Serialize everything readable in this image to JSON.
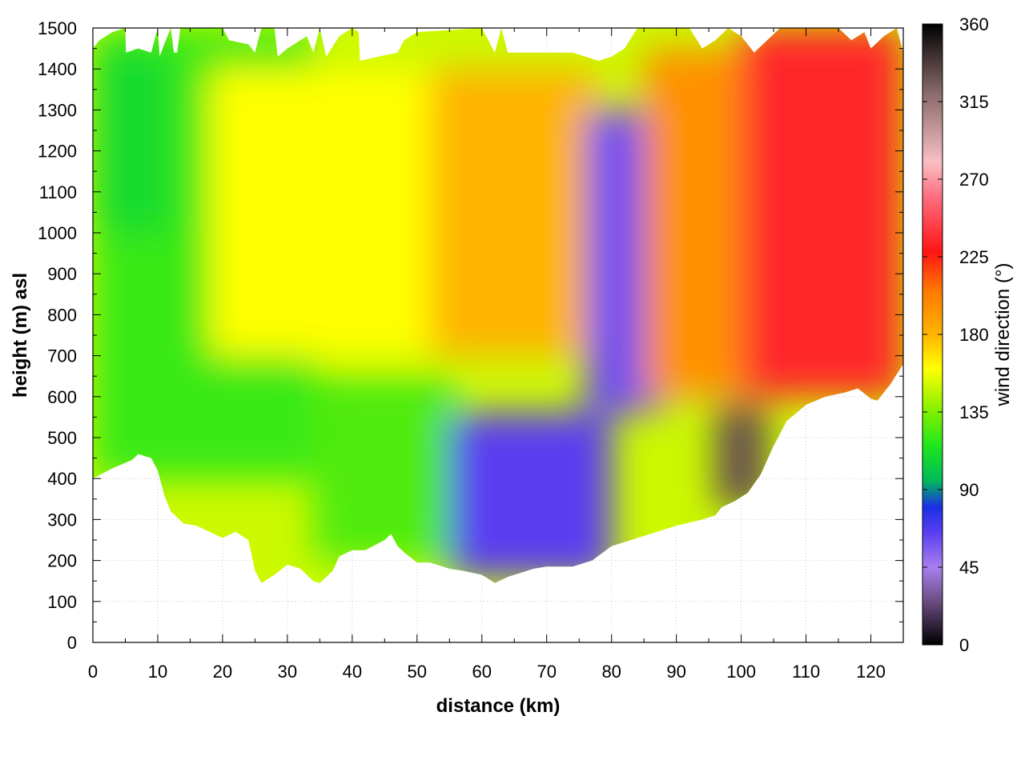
{
  "chart_data": {
    "type": "heatmap",
    "title": "",
    "xlabel": "distance (km)",
    "ylabel": "height (m) asl",
    "colorbar_label": "wind direction (°)",
    "xlim": [
      0,
      125
    ],
    "ylim": [
      0,
      1500
    ],
    "clim": [
      0,
      360
    ],
    "x_ticks": [
      0,
      10,
      20,
      30,
      40,
      50,
      60,
      70,
      80,
      90,
      100,
      110,
      120
    ],
    "y_ticks": [
      0,
      100,
      200,
      300,
      400,
      500,
      600,
      700,
      800,
      900,
      1000,
      1100,
      1200,
      1300,
      1400,
      1500
    ],
    "colorbar_ticks": [
      0,
      45,
      90,
      135,
      180,
      225,
      270,
      315,
      360
    ],
    "grid": true,
    "colormap": [
      {
        "v": 0,
        "color": "#000000"
      },
      {
        "v": 25,
        "color": "#6a4c80"
      },
      {
        "v": 45,
        "color": "#a87ff0"
      },
      {
        "v": 65,
        "color": "#5a3ef0"
      },
      {
        "v": 80,
        "color": "#1a2fe6"
      },
      {
        "v": 95,
        "color": "#00b85a"
      },
      {
        "v": 115,
        "color": "#1ee61e"
      },
      {
        "v": 135,
        "color": "#80f000"
      },
      {
        "v": 160,
        "color": "#ffff00"
      },
      {
        "v": 180,
        "color": "#ffb400"
      },
      {
        "v": 205,
        "color": "#ff7a00"
      },
      {
        "v": 228,
        "color": "#ff1414"
      },
      {
        "v": 260,
        "color": "#ff6e80"
      },
      {
        "v": 280,
        "color": "#f8c0c4"
      },
      {
        "v": 320,
        "color": "#8a6a6a"
      },
      {
        "v": 360,
        "color": "#000000"
      }
    ],
    "terrain": [
      [
        0,
        400
      ],
      [
        3,
        425
      ],
      [
        6,
        445
      ],
      [
        7,
        460
      ],
      [
        9,
        450
      ],
      [
        10,
        420
      ],
      [
        11,
        360
      ],
      [
        12,
        320
      ],
      [
        14,
        290
      ],
      [
        16,
        285
      ],
      [
        18,
        270
      ],
      [
        20,
        255
      ],
      [
        22,
        270
      ],
      [
        24,
        250
      ],
      [
        25,
        175
      ],
      [
        26,
        145
      ],
      [
        28,
        165
      ],
      [
        30,
        190
      ],
      [
        32,
        180
      ],
      [
        34,
        150
      ],
      [
        35,
        145
      ],
      [
        37,
        175
      ],
      [
        38,
        210
      ],
      [
        40,
        225
      ],
      [
        42,
        225
      ],
      [
        45,
        250
      ],
      [
        46,
        265
      ],
      [
        47,
        235
      ],
      [
        48,
        220
      ],
      [
        50,
        195
      ],
      [
        52,
        195
      ],
      [
        55,
        180
      ],
      [
        57,
        175
      ],
      [
        60,
        165
      ],
      [
        62,
        145
      ],
      [
        64,
        160
      ],
      [
        66,
        170
      ],
      [
        68,
        180
      ],
      [
        70,
        185
      ],
      [
        74,
        185
      ],
      [
        77,
        200
      ],
      [
        80,
        235
      ],
      [
        84,
        255
      ],
      [
        87,
        270
      ],
      [
        90,
        285
      ],
      [
        94,
        300
      ],
      [
        96,
        310
      ],
      [
        97,
        330
      ],
      [
        99,
        345
      ],
      [
        101,
        365
      ],
      [
        103,
        410
      ],
      [
        105,
        480
      ],
      [
        107,
        540
      ],
      [
        110,
        580
      ],
      [
        113,
        600
      ],
      [
        116,
        610
      ],
      [
        118,
        620
      ],
      [
        120,
        595
      ],
      [
        121,
        590
      ],
      [
        123,
        630
      ],
      [
        125,
        680
      ]
    ],
    "top_edge": [
      [
        0,
        1450
      ],
      [
        1,
        1470
      ],
      [
        3,
        1490
      ],
      [
        5,
        1500
      ],
      [
        5.1,
        1440
      ],
      [
        7,
        1450
      ],
      [
        9,
        1440
      ],
      [
        10,
        1500
      ],
      [
        10.3,
        1430
      ],
      [
        11,
        1460
      ],
      [
        12,
        1500
      ],
      [
        12.5,
        1440
      ],
      [
        13,
        1440
      ],
      [
        13.5,
        1500
      ],
      [
        20,
        1500
      ],
      [
        21,
        1470
      ],
      [
        24,
        1460
      ],
      [
        25,
        1440
      ],
      [
        26,
        1500
      ],
      [
        28,
        1500
      ],
      [
        28.5,
        1430
      ],
      [
        30,
        1450
      ],
      [
        33,
        1480
      ],
      [
        34,
        1440
      ],
      [
        35,
        1500
      ],
      [
        36,
        1430
      ],
      [
        38,
        1480
      ],
      [
        40,
        1500
      ],
      [
        41,
        1490
      ],
      [
        41.2,
        1420
      ],
      [
        44,
        1430
      ],
      [
        47,
        1440
      ],
      [
        48,
        1470
      ],
      [
        50,
        1490
      ],
      [
        60,
        1500
      ],
      [
        62,
        1440
      ],
      [
        63,
        1500
      ],
      [
        64,
        1440
      ],
      [
        70,
        1440
      ],
      [
        74,
        1440
      ],
      [
        76,
        1430
      ],
      [
        78,
        1420
      ],
      [
        80,
        1430
      ],
      [
        82,
        1450
      ],
      [
        84,
        1500
      ],
      [
        92,
        1500
      ],
      [
        94,
        1450
      ],
      [
        96,
        1470
      ],
      [
        98,
        1500
      ],
      [
        100,
        1480
      ],
      [
        102,
        1440
      ],
      [
        104,
        1470
      ],
      [
        106,
        1500
      ],
      [
        110,
        1500
      ],
      [
        115,
        1500
      ],
      [
        117,
        1470
      ],
      [
        119,
        1490
      ],
      [
        120,
        1450
      ],
      [
        122,
        1480
      ],
      [
        124,
        1500
      ],
      [
        125,
        1440
      ]
    ],
    "regions": [
      {
        "name": "west-green",
        "x": [
          0,
          34
        ],
        "y": [
          400,
          1500
        ],
        "value": 120
      },
      {
        "name": "west-upper-green",
        "x": [
          0,
          12
        ],
        "y": [
          1000,
          1450
        ],
        "value": 110
      },
      {
        "name": "central-yellow",
        "x": [
          18,
          55
        ],
        "y": [
          700,
          1400
        ],
        "value": 160
      },
      {
        "name": "central-orange",
        "x": [
          52,
          78
        ],
        "y": [
          700,
          1400
        ],
        "value": 180
      },
      {
        "name": "mid-green",
        "x": [
          34,
          56
        ],
        "y": [
          200,
          650
        ],
        "value": 125
      },
      {
        "name": "blue-core",
        "x": [
          55,
          80
        ],
        "y": [
          160,
          560
        ],
        "value": 65
      },
      {
        "name": "blue-column",
        "x": [
          76,
          88
        ],
        "y": [
          560,
          1300
        ],
        "value": 60
      },
      {
        "name": "east-orange",
        "x": [
          85,
          100
        ],
        "y": [
          600,
          1450
        ],
        "value": 195
      },
      {
        "name": "east-red",
        "x": [
          100,
          125
        ],
        "y": [
          600,
          1500
        ],
        "value": 235
      },
      {
        "name": "east-dark",
        "x": [
          96,
          104
        ],
        "y": [
          330,
          580
        ],
        "value": 330
      }
    ]
  }
}
